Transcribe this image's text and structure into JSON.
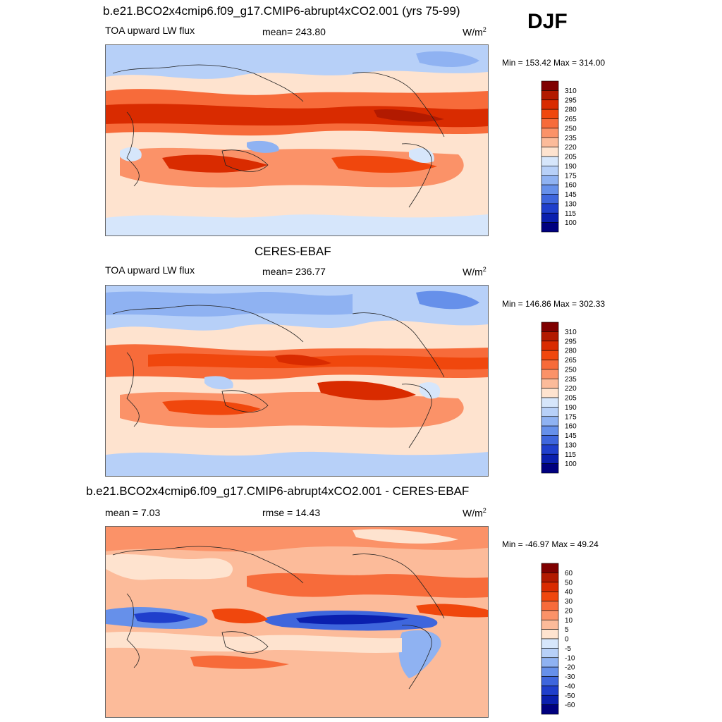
{
  "season": "DJF",
  "panels": [
    {
      "title": "b.e21.BCO2x4cmip6.f09_g17.CMIP6-abrupt4xCO2.001 (yrs 75-99)",
      "left_label": "TOA upward LW flux",
      "center_label": "mean= 243.80",
      "units": "W/m",
      "units_exp": "2",
      "minmax": "Min = 153.42 Max = 314.00",
      "colorbar_labels": [
        "310",
        "295",
        "280",
        "265",
        "250",
        "235",
        "220",
        "205",
        "190",
        "175",
        "160",
        "145",
        "130",
        "115",
        "100"
      ],
      "colorbar_colors": [
        "#7f0000",
        "#b21a00",
        "#d92b00",
        "#f0470d",
        "#f76b3a",
        "#fb9268",
        "#fcbb9a",
        "#fee3cf",
        "#d6e6fb",
        "#b7d0f8",
        "#8fb2f2",
        "#6690ea",
        "#3e66dd",
        "#1f3fcc",
        "#0a1fae",
        "#00007f"
      ]
    },
    {
      "title": "CERES-EBAF",
      "left_label": "TOA upward LW flux",
      "center_label": "mean= 236.77",
      "units": "W/m",
      "units_exp": "2",
      "minmax": "Min = 146.86 Max = 302.33",
      "colorbar_labels": [
        "310",
        "295",
        "280",
        "265",
        "250",
        "235",
        "220",
        "205",
        "190",
        "175",
        "160",
        "145",
        "130",
        "115",
        "100"
      ],
      "colorbar_colors": [
        "#7f0000",
        "#b21a00",
        "#d92b00",
        "#f0470d",
        "#f76b3a",
        "#fb9268",
        "#fcbb9a",
        "#fee3cf",
        "#d6e6fb",
        "#b7d0f8",
        "#8fb2f2",
        "#6690ea",
        "#3e66dd",
        "#1f3fcc",
        "#0a1fae",
        "#00007f"
      ]
    },
    {
      "title": "b.e21.BCO2x4cmip6.f09_g17.CMIP6-abrupt4xCO2.001 - CERES-EBAF",
      "left_label": "mean =   7.03",
      "center_label": "rmse =  14.43",
      "units": "W/m",
      "units_exp": "2",
      "minmax": "Min = -46.97 Max =  49.24",
      "colorbar_labels": [
        "60",
        "50",
        "40",
        "30",
        "20",
        "10",
        "5",
        "0",
        "-5",
        "-10",
        "-20",
        "-30",
        "-40",
        "-50",
        "-60"
      ],
      "colorbar_colors": [
        "#7f0000",
        "#b21a00",
        "#d92b00",
        "#f0470d",
        "#f76b3a",
        "#fb9268",
        "#fcbb9a",
        "#fee3cf",
        "#d6e6fb",
        "#b7d0f8",
        "#8fb2f2",
        "#6690ea",
        "#3e66dd",
        "#1f3fcc",
        "#0a1fae",
        "#00007f"
      ]
    }
  ]
}
